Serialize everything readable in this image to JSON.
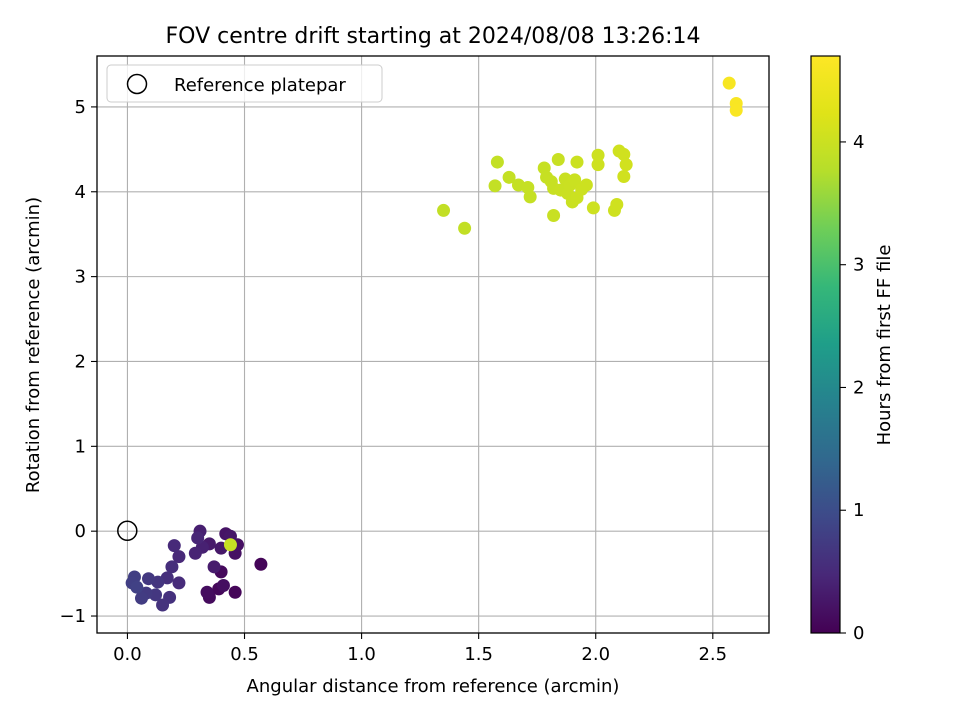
{
  "chart_data": {
    "type": "scatter",
    "title": "FOV centre drift starting at 2024/08/08 13:26:14",
    "xlabel": "Angular distance from reference (arcmin)",
    "ylabel": "Rotation from reference (arcmin)",
    "xlim": [
      -0.13,
      2.74
    ],
    "ylim": [
      -1.2,
      5.6
    ],
    "xticks": [
      0.0,
      0.5,
      1.0,
      1.5,
      2.0,
      2.5
    ],
    "xtick_labels": [
      "0.0",
      "0.5",
      "1.0",
      "1.5",
      "2.0",
      "2.5"
    ],
    "yticks": [
      -1,
      0,
      1,
      2,
      3,
      4,
      5
    ],
    "ytick_labels": [
      "−1",
      "0",
      "1",
      "2",
      "3",
      "4",
      "5"
    ],
    "grid": true,
    "legend": {
      "position": "top-left",
      "entries": [
        "Reference platepar"
      ]
    },
    "reference_point": {
      "name": "Reference platepar",
      "x": 0.0,
      "y": 0.0
    },
    "colorbar": {
      "label": "Hours from first FF file",
      "colormap": "viridis",
      "range": [
        0,
        4.7
      ],
      "ticks": [
        0,
        1,
        2,
        3,
        4
      ],
      "tick_labels": [
        "0",
        "1",
        "2",
        "3",
        "4"
      ]
    },
    "points": [
      {
        "x": 0.57,
        "y": -0.39,
        "c": 0.05
      },
      {
        "x": 0.46,
        "y": -0.72,
        "c": 0.06
      },
      {
        "x": 0.39,
        "y": -0.68,
        "c": 0.08
      },
      {
        "x": 0.4,
        "y": -0.48,
        "c": 0.1
      },
      {
        "x": 0.35,
        "y": -0.78,
        "c": 0.12
      },
      {
        "x": 0.34,
        "y": -0.72,
        "c": 0.14
      },
      {
        "x": 0.41,
        "y": -0.64,
        "c": 0.16
      },
      {
        "x": 0.47,
        "y": -0.16,
        "c": 0.18
      },
      {
        "x": 0.46,
        "y": -0.26,
        "c": 0.2
      },
      {
        "x": 0.42,
        "y": -0.03,
        "c": 0.22
      },
      {
        "x": 0.44,
        "y": -0.06,
        "c": 0.25
      },
      {
        "x": 0.4,
        "y": -0.2,
        "c": 0.28
      },
      {
        "x": 0.35,
        "y": -0.15,
        "c": 0.3
      },
      {
        "x": 0.37,
        "y": -0.42,
        "c": 0.33
      },
      {
        "x": 0.31,
        "y": 0.0,
        "c": 0.36
      },
      {
        "x": 0.32,
        "y": -0.19,
        "c": 0.39
      },
      {
        "x": 0.29,
        "y": -0.26,
        "c": 0.42
      },
      {
        "x": 0.3,
        "y": -0.08,
        "c": 0.45
      },
      {
        "x": 0.22,
        "y": -0.3,
        "c": 0.48
      },
      {
        "x": 0.2,
        "y": -0.17,
        "c": 0.5
      },
      {
        "x": 0.22,
        "y": -0.61,
        "c": 0.52
      },
      {
        "x": 0.19,
        "y": -0.42,
        "c": 0.55
      },
      {
        "x": 0.17,
        "y": -0.55,
        "c": 0.58
      },
      {
        "x": 0.18,
        "y": -0.78,
        "c": 0.6
      },
      {
        "x": 0.15,
        "y": -0.87,
        "c": 0.62
      },
      {
        "x": 0.13,
        "y": -0.6,
        "c": 0.65
      },
      {
        "x": 0.12,
        "y": -0.75,
        "c": 0.68
      },
      {
        "x": 0.09,
        "y": -0.56,
        "c": 0.7
      },
      {
        "x": 0.08,
        "y": -0.73,
        "c": 0.72
      },
      {
        "x": 0.06,
        "y": -0.79,
        "c": 0.75
      },
      {
        "x": 0.03,
        "y": -0.54,
        "c": 0.78
      },
      {
        "x": 0.02,
        "y": -0.61,
        "c": 0.8
      },
      {
        "x": 0.04,
        "y": -0.66,
        "c": 0.82
      },
      {
        "x": 0.44,
        "y": -0.16,
        "c": 3.95
      },
      {
        "x": 1.35,
        "y": 3.78,
        "c": 3.9
      },
      {
        "x": 1.44,
        "y": 3.57,
        "c": 3.9
      },
      {
        "x": 1.57,
        "y": 4.07,
        "c": 3.92
      },
      {
        "x": 1.58,
        "y": 4.35,
        "c": 3.92
      },
      {
        "x": 1.63,
        "y": 4.17,
        "c": 3.93
      },
      {
        "x": 1.67,
        "y": 4.08,
        "c": 3.93
      },
      {
        "x": 1.71,
        "y": 4.05,
        "c": 3.94
      },
      {
        "x": 1.72,
        "y": 3.94,
        "c": 3.94
      },
      {
        "x": 1.78,
        "y": 4.28,
        "c": 3.95
      },
      {
        "x": 1.79,
        "y": 4.17,
        "c": 3.95
      },
      {
        "x": 1.81,
        "y": 4.12,
        "c": 3.96
      },
      {
        "x": 1.82,
        "y": 4.04,
        "c": 3.96
      },
      {
        "x": 1.82,
        "y": 3.72,
        "c": 3.97
      },
      {
        "x": 1.84,
        "y": 4.38,
        "c": 3.97
      },
      {
        "x": 1.85,
        "y": 4.02,
        "c": 3.98
      },
      {
        "x": 1.87,
        "y": 4.15,
        "c": 3.98
      },
      {
        "x": 1.88,
        "y": 3.98,
        "c": 3.99
      },
      {
        "x": 1.89,
        "y": 4.08,
        "c": 3.99
      },
      {
        "x": 1.9,
        "y": 3.88,
        "c": 4.0
      },
      {
        "x": 1.91,
        "y": 4.14,
        "c": 4.0
      },
      {
        "x": 1.92,
        "y": 4.35,
        "c": 4.01
      },
      {
        "x": 1.92,
        "y": 3.93,
        "c": 4.01
      },
      {
        "x": 1.94,
        "y": 4.03,
        "c": 4.02
      },
      {
        "x": 1.96,
        "y": 4.08,
        "c": 4.02
      },
      {
        "x": 1.99,
        "y": 3.81,
        "c": 4.03
      },
      {
        "x": 2.01,
        "y": 4.43,
        "c": 4.03
      },
      {
        "x": 2.01,
        "y": 4.32,
        "c": 4.04
      },
      {
        "x": 2.08,
        "y": 3.78,
        "c": 4.04
      },
      {
        "x": 2.09,
        "y": 3.85,
        "c": 4.05
      },
      {
        "x": 2.1,
        "y": 4.48,
        "c": 4.05
      },
      {
        "x": 2.12,
        "y": 4.44,
        "c": 4.06
      },
      {
        "x": 2.12,
        "y": 4.18,
        "c": 4.06
      },
      {
        "x": 2.13,
        "y": 4.32,
        "c": 4.07
      },
      {
        "x": 2.57,
        "y": 5.28,
        "c": 4.6
      },
      {
        "x": 2.6,
        "y": 5.04,
        "c": 4.62
      },
      {
        "x": 2.6,
        "y": 4.96,
        "c": 4.64
      }
    ]
  }
}
